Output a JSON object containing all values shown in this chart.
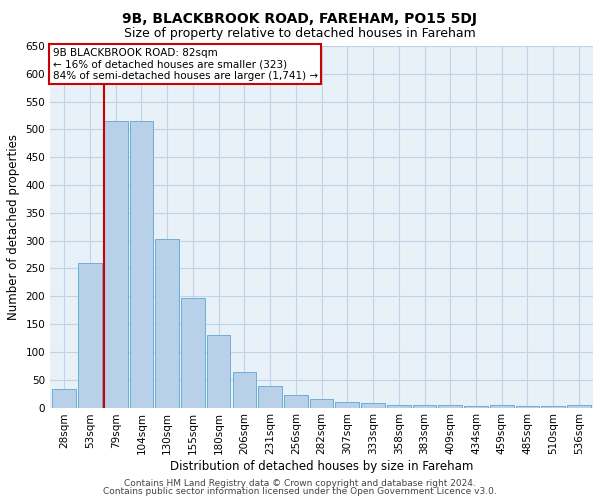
{
  "title": "9B, BLACKBROOK ROAD, FAREHAM, PO15 5DJ",
  "subtitle": "Size of property relative to detached houses in Fareham",
  "xlabel": "Distribution of detached houses by size in Fareham",
  "ylabel": "Number of detached properties",
  "categories": [
    "28sqm",
    "53sqm",
    "79sqm",
    "104sqm",
    "130sqm",
    "155sqm",
    "180sqm",
    "206sqm",
    "231sqm",
    "256sqm",
    "282sqm",
    "307sqm",
    "333sqm",
    "358sqm",
    "383sqm",
    "409sqm",
    "434sqm",
    "459sqm",
    "485sqm",
    "510sqm",
    "536sqm"
  ],
  "values": [
    33,
    260,
    515,
    515,
    303,
    197,
    130,
    63,
    38,
    23,
    16,
    10,
    8,
    5,
    5,
    5,
    2,
    5,
    2,
    2,
    5
  ],
  "bar_color": "#b8d0e8",
  "bar_edge_color": "#6aaed6",
  "vline_index": 2,
  "annotation_line1": "9B BLACKBROOK ROAD: 82sqm",
  "annotation_line2": "← 16% of detached houses are smaller (323)",
  "annotation_line3": "84% of semi-detached houses are larger (1,741) →",
  "annotation_box_color": "#ffffff",
  "annotation_box_edge_color": "#cc0000",
  "vline_color": "#cc0000",
  "ylim": [
    0,
    650
  ],
  "yticks": [
    0,
    50,
    100,
    150,
    200,
    250,
    300,
    350,
    400,
    450,
    500,
    550,
    600,
    650
  ],
  "grid_color": "#c0d4e8",
  "background_color": "#e8f0f8",
  "footer_line1": "Contains HM Land Registry data © Crown copyright and database right 2024.",
  "footer_line2": "Contains public sector information licensed under the Open Government Licence v3.0.",
  "title_fontsize": 10,
  "subtitle_fontsize": 9,
  "xlabel_fontsize": 8.5,
  "ylabel_fontsize": 8.5,
  "tick_fontsize": 7.5,
  "annot_fontsize": 7.5,
  "footer_fontsize": 6.5
}
